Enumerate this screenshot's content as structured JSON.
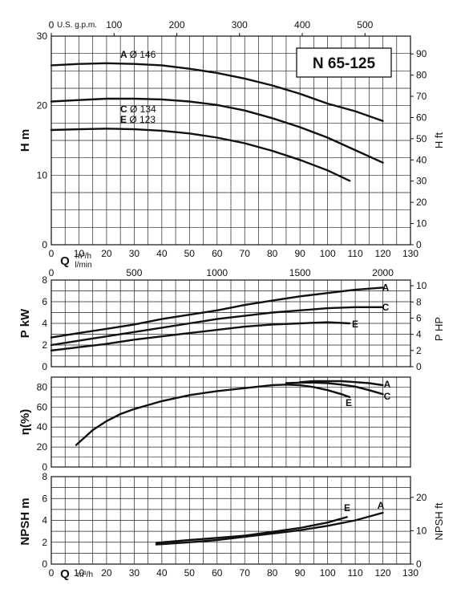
{
  "model": "N 65-125",
  "chart_data": [
    {
      "type": "line",
      "title": "N 65-125",
      "ylabel": "H m",
      "ylabel_right": "H ft",
      "top_axis_label": "U.S. g.p.m.",
      "xlabel_unit": "m³/h",
      "xlabel_unit2": "l/min",
      "q_axis": "Q",
      "xlim": [
        0,
        130
      ],
      "ylim": [
        0,
        30
      ],
      "ylim_right": [
        0,
        98.4
      ],
      "x_ticks": [
        "0",
        "10",
        "20",
        "30",
        "40",
        "50",
        "60",
        "70",
        "80",
        "90",
        "100",
        "110",
        "120",
        "130"
      ],
      "y_ticks": [
        "0",
        "10",
        "20",
        "30"
      ],
      "y_right_ticks": [
        "0",
        "10",
        "20",
        "30",
        "40",
        "50",
        "60",
        "70",
        "80",
        "90"
      ],
      "top_ticks": [
        "0",
        "100",
        "200",
        "300",
        "400",
        "500"
      ],
      "series": [
        {
          "name": "A",
          "diameter": "Ø 146",
          "x": [
            0,
            10,
            20,
            30,
            40,
            50,
            60,
            70,
            80,
            90,
            100,
            110,
            120
          ],
          "y": [
            25.8,
            26.0,
            26.1,
            26.0,
            25.8,
            25.3,
            24.7,
            23.9,
            22.9,
            21.7,
            20.3,
            19.2,
            17.8
          ]
        },
        {
          "name": "C",
          "diameter": "Ø 134",
          "x": [
            0,
            10,
            20,
            30,
            40,
            50,
            60,
            70,
            80,
            90,
            100,
            110,
            120
          ],
          "y": [
            20.6,
            20.8,
            21.0,
            21.0,
            20.9,
            20.6,
            20.1,
            19.3,
            18.2,
            16.9,
            15.4,
            13.6,
            11.8
          ]
        },
        {
          "name": "E",
          "diameter": "Ø 123",
          "x": [
            0,
            10,
            20,
            30,
            40,
            50,
            60,
            70,
            80,
            90,
            100,
            108
          ],
          "y": [
            16.5,
            16.6,
            16.7,
            16.6,
            16.4,
            16.0,
            15.4,
            14.6,
            13.5,
            12.2,
            10.7,
            9.2
          ]
        }
      ]
    },
    {
      "type": "line",
      "ylabel": "P kW",
      "ylabel_right": "P HP",
      "top_axis_label": "",
      "xlim": [
        0,
        130
      ],
      "ylim": [
        0,
        8
      ],
      "ylim_right": [
        0,
        10.7
      ],
      "y_ticks": [
        "0",
        "2",
        "4",
        "6",
        "8"
      ],
      "y_right_ticks": [
        "0",
        "2",
        "4",
        "6",
        "8",
        "10"
      ],
      "top_ticks": [
        "0",
        "500",
        "1000",
        "1500",
        "2000"
      ],
      "series": [
        {
          "name": "A",
          "x": [
            0,
            10,
            20,
            30,
            40,
            50,
            60,
            70,
            80,
            90,
            100,
            110,
            120
          ],
          "y": [
            2.7,
            3.1,
            3.5,
            3.9,
            4.4,
            4.8,
            5.2,
            5.7,
            6.1,
            6.5,
            6.8,
            7.1,
            7.3
          ]
        },
        {
          "name": "C",
          "x": [
            0,
            10,
            20,
            30,
            40,
            50,
            60,
            70,
            80,
            90,
            100,
            110,
            120
          ],
          "y": [
            2.0,
            2.4,
            2.8,
            3.2,
            3.6,
            4.0,
            4.4,
            4.7,
            5.0,
            5.2,
            5.4,
            5.5,
            5.5
          ]
        },
        {
          "name": "E",
          "x": [
            0,
            10,
            20,
            30,
            40,
            50,
            60,
            70,
            80,
            90,
            100,
            108
          ],
          "y": [
            1.5,
            1.8,
            2.1,
            2.5,
            2.8,
            3.1,
            3.4,
            3.7,
            3.9,
            4.0,
            4.1,
            4.0
          ]
        }
      ]
    },
    {
      "type": "line",
      "ylabel": "η(%)",
      "xlim": [
        0,
        130
      ],
      "ylim": [
        0,
        90
      ],
      "y_ticks": [
        "0",
        "20",
        "40",
        "60",
        "80"
      ],
      "series": [
        {
          "name": "A",
          "x": [
            90,
            95,
            100,
            105,
            110,
            115,
            120
          ],
          "y": [
            85,
            86,
            86,
            86,
            85,
            84,
            82
          ]
        },
        {
          "name": "C",
          "x": [
            85,
            90,
            95,
            100,
            105,
            110,
            115,
            120
          ],
          "y": [
            84,
            84.5,
            84.5,
            84,
            82.5,
            80.5,
            77,
            73
          ]
        },
        {
          "name": "E",
          "x": [
            9,
            15,
            20,
            25,
            30,
            40,
            50,
            60,
            70,
            80,
            85,
            90,
            95,
            100,
            105,
            108
          ],
          "y": [
            22,
            37,
            46,
            53,
            58,
            66,
            72,
            76,
            79,
            82,
            82.5,
            82,
            80,
            77,
            73,
            70
          ]
        }
      ]
    },
    {
      "type": "line",
      "ylabel": "NPSH m",
      "ylabel_right": "NPSH ft",
      "xlabel_unit": "m³/h",
      "q_axis": "Q",
      "xlim": [
        0,
        130
      ],
      "ylim": [
        0,
        8
      ],
      "ylim_right": [
        0,
        26.2
      ],
      "x_ticks": [
        "0",
        "10",
        "20",
        "30",
        "40",
        "50",
        "60",
        "70",
        "80",
        "90",
        "100",
        "110",
        "120",
        "130"
      ],
      "y_ticks": [
        "0",
        "2",
        "4",
        "6",
        "8"
      ],
      "y_right_ticks": [
        "0",
        "10",
        "20"
      ],
      "series": [
        {
          "name": "E",
          "x": [
            38,
            50,
            60,
            70,
            80,
            90,
            100,
            107
          ],
          "y": [
            1.95,
            2.2,
            2.4,
            2.6,
            2.95,
            3.3,
            3.8,
            4.3
          ]
        },
        {
          "name": "A",
          "x": [
            38,
            50,
            60,
            70,
            80,
            90,
            100,
            110,
            120
          ],
          "y": [
            1.8,
            2.0,
            2.2,
            2.5,
            2.8,
            3.1,
            3.5,
            4.0,
            4.7
          ]
        }
      ]
    }
  ]
}
